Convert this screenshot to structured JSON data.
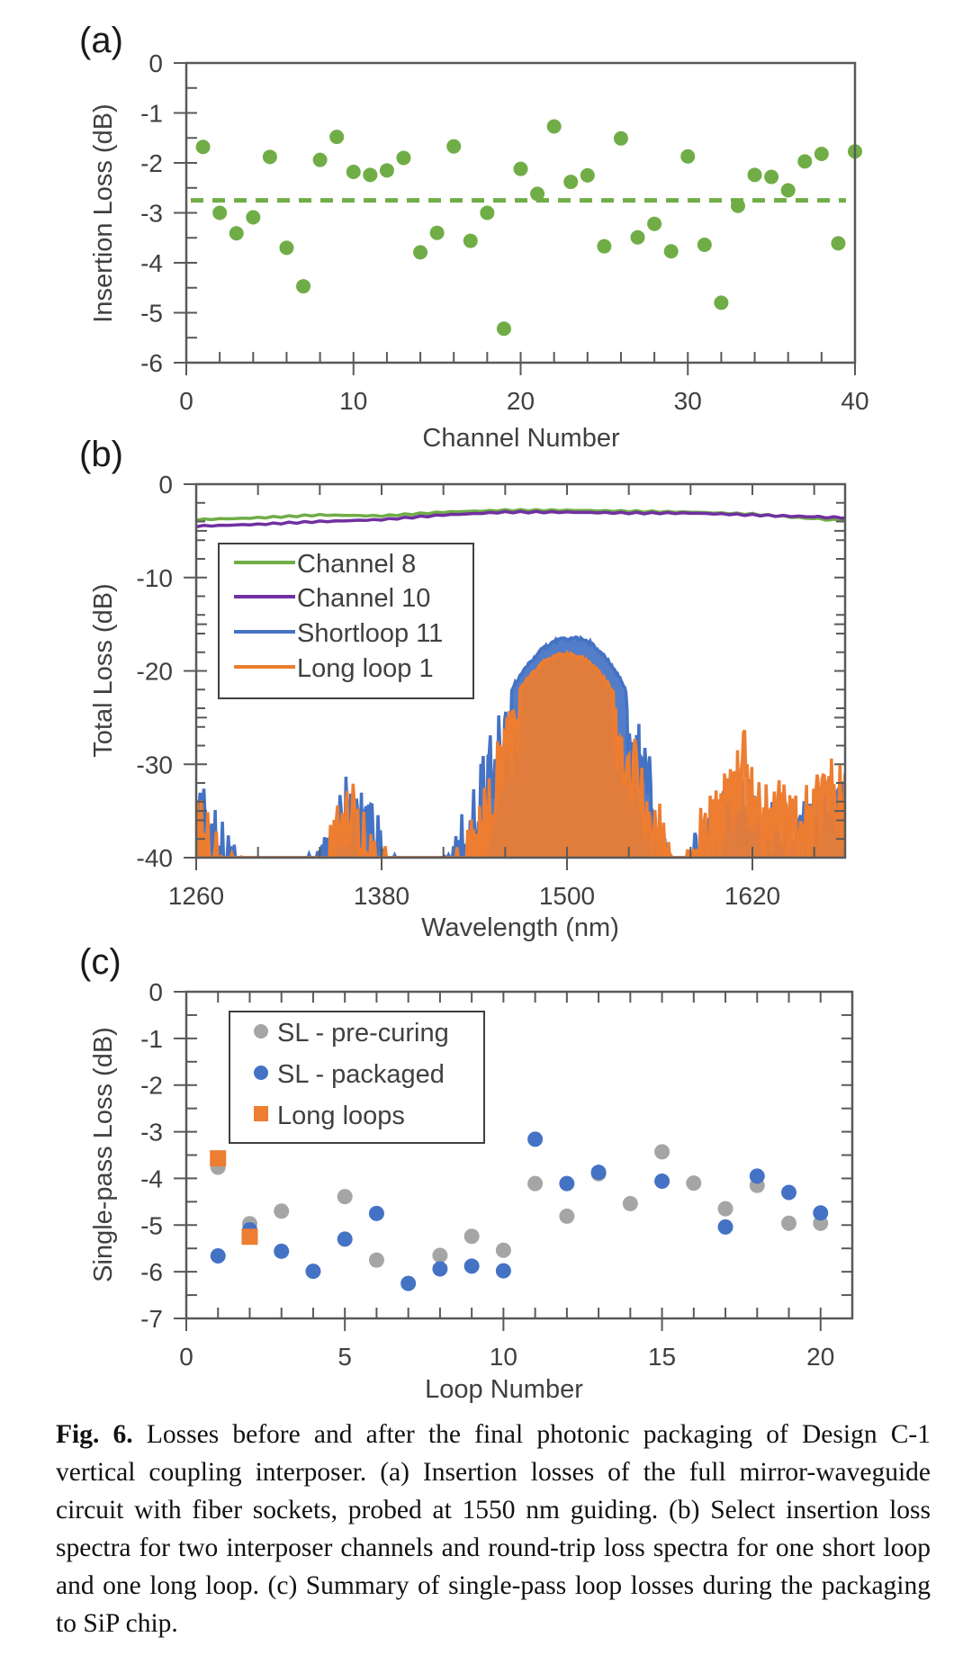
{
  "chart_data": [
    {
      "id": "a",
      "panel_label": "(a)",
      "type": "scatter",
      "xlabel": "Channel Number",
      "ylabel": "Insertion Loss (dB)",
      "xlim": [
        0,
        40
      ],
      "ylim": [
        -6,
        0
      ],
      "xticks": [
        0,
        10,
        20,
        30,
        40
      ],
      "yticks": [
        0,
        -1,
        -2,
        -3,
        -4,
        -5,
        -6
      ],
      "grid": false,
      "color": "#70ad47",
      "series": [
        {
          "name": "Insertion loss",
          "x": [
            1,
            2,
            3,
            4,
            5,
            6,
            7,
            8,
            9,
            10,
            11,
            12,
            13,
            14,
            15,
            16,
            17,
            18,
            19,
            20,
            21,
            22,
            23,
            24,
            25,
            26,
            27,
            28,
            29,
            30,
            31,
            32,
            33,
            34,
            35,
            36,
            37,
            38,
            39,
            40
          ],
          "y": [
            -1.68,
            -3.0,
            -3.41,
            -3.09,
            -1.88,
            -3.7,
            -4.47,
            -1.94,
            -1.48,
            -2.18,
            -2.24,
            -2.15,
            -1.9,
            -3.79,
            -3.4,
            -1.67,
            -3.56,
            -3.0,
            -5.32,
            -2.12,
            -2.62,
            -1.27,
            -2.38,
            -2.25,
            -3.67,
            -1.51,
            -3.49,
            -3.22,
            -3.77,
            -1.87,
            -3.64,
            -4.8,
            -2.86,
            -2.24,
            -2.28,
            -2.55,
            -1.97,
            -1.82,
            -3.61,
            -1.77
          ]
        }
      ],
      "reference_line": {
        "label": "mean",
        "y": -2.75,
        "style": "dashed"
      }
    },
    {
      "id": "b",
      "panel_label": "(b)",
      "type": "line",
      "xlabel": "Wavelength (nm)",
      "ylabel": "Total Loss (dB)",
      "xlim": [
        1260,
        1680
      ],
      "ylim": [
        -40,
        0
      ],
      "xticks": [
        1260,
        1380,
        1500,
        1620
      ],
      "yticks": [
        0,
        -10,
        -20,
        -30,
        -40
      ],
      "grid": false,
      "legend": {
        "position": "left",
        "entries": [
          "Channel 8",
          "Channel 10",
          "Shortloop 11",
          "Long loop 1"
        ]
      },
      "series": [
        {
          "name": "Channel 8",
          "color": "#70ad47",
          "x": [
            1260,
            1300,
            1340,
            1380,
            1420,
            1460,
            1500,
            1540,
            1580,
            1620,
            1660,
            1680
          ],
          "y": [
            -3.8,
            -3.6,
            -3.3,
            -3.4,
            -3.0,
            -2.8,
            -2.8,
            -2.9,
            -3.0,
            -3.2,
            -3.7,
            -3.9
          ]
        },
        {
          "name": "Channel 10",
          "color": "#7030a0",
          "x": [
            1260,
            1300,
            1340,
            1380,
            1420,
            1460,
            1500,
            1540,
            1580,
            1620,
            1660,
            1680
          ],
          "y": [
            -4.5,
            -4.3,
            -4.0,
            -3.8,
            -3.3,
            -3.0,
            -3.0,
            -3.1,
            -3.1,
            -3.3,
            -3.5,
            -3.6
          ]
        },
        {
          "name": "Shortloop 11",
          "color": "#4472c4",
          "x": [
            1260,
            1265,
            1270,
            1280,
            1290,
            1300,
            1330,
            1340,
            1350,
            1360,
            1370,
            1380,
            1390,
            1400,
            1420,
            1425,
            1435,
            1445,
            1455,
            1465,
            1475,
            1485,
            1495,
            1505,
            1515,
            1525,
            1535,
            1545,
            1555,
            1560,
            1565,
            1575,
            1585,
            1595,
            1605,
            1615,
            1625,
            1635,
            1645,
            1655,
            1665,
            1675,
            1680
          ],
          "y": [
            -31,
            -32,
            -34,
            -37,
            -40,
            -40,
            -40,
            -38,
            -34,
            -29,
            -33,
            -36,
            -39,
            -40,
            -40,
            -38,
            -34,
            -29,
            -25,
            -21.5,
            -19,
            -17.3,
            -16.4,
            -16.2,
            -16.8,
            -18.3,
            -20.8,
            -24.5,
            -29.5,
            -33,
            -38,
            -40,
            -36,
            -33,
            -31,
            -30,
            -33,
            -32,
            -34,
            -33,
            -31,
            -30,
            -31
          ]
        },
        {
          "name": "Long loop 1",
          "color": "#ed7d31",
          "x": [
            1260,
            1265,
            1270,
            1280,
            1290,
            1300,
            1330,
            1340,
            1350,
            1360,
            1370,
            1380,
            1390,
            1400,
            1420,
            1425,
            1435,
            1445,
            1455,
            1465,
            1475,
            1485,
            1495,
            1500,
            1510,
            1520,
            1530,
            1540,
            1550,
            1560,
            1565,
            1575,
            1585,
            1595,
            1605,
            1615,
            1625,
            1635,
            1645,
            1655,
            1665,
            1675,
            1680
          ],
          "y": [
            -32,
            -33,
            -35,
            -38,
            -40,
            -40,
            -40,
            -39,
            -35,
            -31,
            -34,
            -37,
            -40,
            -40,
            -40,
            -39,
            -37,
            -33,
            -27,
            -23,
            -20.5,
            -18.8,
            -18.1,
            -18.0,
            -18.4,
            -19.7,
            -22,
            -25.2,
            -29.5,
            -34,
            -38,
            -40,
            -35,
            -32,
            -30,
            -26,
            -32,
            -31,
            -33,
            -32,
            -30,
            -29,
            -31
          ]
        }
      ]
    },
    {
      "id": "c",
      "panel_label": "(c)",
      "type": "scatter",
      "xlabel": "Loop Number",
      "ylabel": "Single-pass Loss (dB)",
      "xlim": [
        0,
        21
      ],
      "ylim": [
        -7,
        0
      ],
      "xticks": [
        0,
        5,
        10,
        15,
        20
      ],
      "yticks": [
        0,
        -1,
        -2,
        -3,
        -4,
        -5,
        -6,
        -7
      ],
      "grid": false,
      "legend": {
        "position": "top-left",
        "entries": [
          "SL - pre-curing",
          "SL - packaged",
          "Long loops"
        ]
      },
      "series": [
        {
          "name": "SL - pre-curing",
          "color": "#a5a5a5",
          "marker": "circle",
          "x": [
            1,
            2,
            3,
            5,
            6,
            8,
            9,
            10,
            11,
            12,
            13,
            14,
            15,
            16,
            17,
            18,
            19,
            20
          ],
          "y": [
            -3.76,
            -4.97,
            -4.7,
            -4.39,
            -5.75,
            -5.65,
            -5.24,
            -5.54,
            -4.11,
            -4.81,
            -3.9,
            -4.54,
            -3.43,
            -4.1,
            -4.65,
            -4.15,
            -4.96,
            -4.96
          ]
        },
        {
          "name": "SL - packaged",
          "color": "#4472c4",
          "marker": "circle",
          "x": [
            1,
            2,
            3,
            4,
            5,
            6,
            7,
            8,
            9,
            10,
            11,
            12,
            13,
            15,
            17,
            18,
            19,
            20
          ],
          "y": [
            -5.66,
            -5.1,
            -5.56,
            -5.99,
            -5.3,
            -4.75,
            -6.25,
            -5.94,
            -5.88,
            -5.98,
            -3.16,
            -4.11,
            -3.87,
            -4.06,
            -5.04,
            -3.95,
            -4.3,
            -4.74
          ]
        },
        {
          "name": "Long loops",
          "color": "#ed7d31",
          "marker": "square",
          "x": [
            1,
            2
          ],
          "y": [
            -3.57,
            -5.25
          ]
        }
      ]
    }
  ],
  "caption": {
    "label": "Fig. 6.",
    "text": "Losses before and after the final photonic packaging of Design C-1 vertical coupling interposer. (a) Insertion losses of the full mirror-waveguide circuit with fiber sockets, probed at 1550 nm guiding. (b) Select insertion loss spectra for two interposer channels and round-trip loss spectra for one short loop and one long loop. (c) Summary of single-pass loop losses during the packaging to SiP chip."
  }
}
